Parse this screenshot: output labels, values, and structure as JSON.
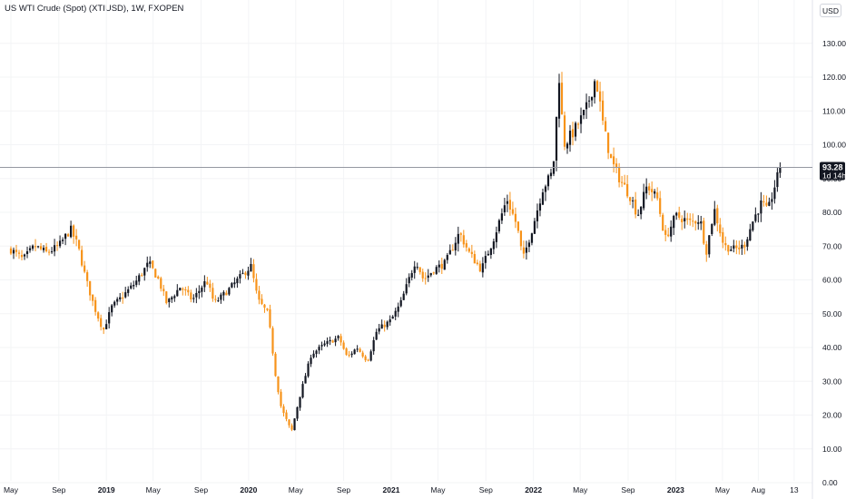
{
  "header": {
    "title": "US WTI Crude (Spot) (XTIUSD), 1W, FXOPEN",
    "currency_button": "USD"
  },
  "colors": {
    "up": "#131722",
    "down": "#f7931a",
    "price_line": "#9598a1",
    "label_bg": "#131722",
    "grid": "#f3f4f6"
  },
  "last_price": {
    "value": 93.28,
    "label": "93.28",
    "countdown": "1d 14h"
  },
  "chart_data": {
    "type": "candlestick",
    "title": "US WTI Crude (Spot) (XTIUSD), 1W, FXOPEN",
    "ylabel": "USD",
    "ylim": [
      0,
      135
    ],
    "yticks": [
      "0.00",
      "10.00",
      "20.00",
      "30.00",
      "40.00",
      "50.00",
      "60.00",
      "70.00",
      "80.00",
      "90.00",
      "100.00",
      "110.00",
      "120.00",
      "130.00"
    ],
    "xlim": [
      "2018-05-01",
      "2023-11-06"
    ],
    "xticks": [
      {
        "date": "2018-05-01",
        "label": "May",
        "year": false
      },
      {
        "date": "2018-09-01",
        "label": "Sep",
        "year": false
      },
      {
        "date": "2019-01-01",
        "label": "2019",
        "year": true
      },
      {
        "date": "2019-05-01",
        "label": "May",
        "year": false
      },
      {
        "date": "2019-09-01",
        "label": "Sep",
        "year": false
      },
      {
        "date": "2020-01-01",
        "label": "2020",
        "year": true
      },
      {
        "date": "2020-05-01",
        "label": "May",
        "year": false
      },
      {
        "date": "2020-09-01",
        "label": "Sep",
        "year": false
      },
      {
        "date": "2021-01-01",
        "label": "2021",
        "year": true
      },
      {
        "date": "2021-05-01",
        "label": "May",
        "year": false
      },
      {
        "date": "2021-09-01",
        "label": "Sep",
        "year": false
      },
      {
        "date": "2022-01-01",
        "label": "2022",
        "year": true
      },
      {
        "date": "2022-05-01",
        "label": "May",
        "year": false
      },
      {
        "date": "2022-09-01",
        "label": "Sep",
        "year": false
      },
      {
        "date": "2023-01-01",
        "label": "2023",
        "year": true
      },
      {
        "date": "2023-05-01",
        "label": "May",
        "year": false
      },
      {
        "date": "2023-08-01",
        "label": "Aug",
        "year": false
      },
      {
        "date": "2023-11-01",
        "label": "13",
        "year": false
      }
    ],
    "trend": [
      [
        "2018-05-01",
        69
      ],
      [
        "2018-06-01",
        66
      ],
      [
        "2018-07-01",
        70
      ],
      [
        "2018-08-01",
        68
      ],
      [
        "2018-09-01",
        70
      ],
      [
        "2018-10-01",
        75
      ],
      [
        "2018-10-20",
        70
      ],
      [
        "2018-11-10",
        60
      ],
      [
        "2018-12-01",
        52
      ],
      [
        "2018-12-24",
        45
      ],
      [
        "2019-01-15",
        52
      ],
      [
        "2019-02-10",
        55
      ],
      [
        "2019-03-15",
        59
      ],
      [
        "2019-04-20",
        65
      ],
      [
        "2019-05-15",
        60
      ],
      [
        "2019-06-05",
        53
      ],
      [
        "2019-07-10",
        58
      ],
      [
        "2019-08-10",
        54
      ],
      [
        "2019-09-15",
        60
      ],
      [
        "2019-10-05",
        53
      ],
      [
        "2019-11-10",
        57
      ],
      [
        "2019-12-20",
        62
      ],
      [
        "2020-01-07",
        64
      ],
      [
        "2020-01-25",
        54
      ],
      [
        "2020-02-20",
        50
      ],
      [
        "2020-03-10",
        32
      ],
      [
        "2020-03-25",
        22
      ],
      [
        "2020-04-20",
        15
      ],
      [
        "2020-05-10",
        25
      ],
      [
        "2020-06-10",
        38
      ],
      [
        "2020-07-15",
        41
      ],
      [
        "2020-08-20",
        43
      ],
      [
        "2020-09-10",
        37
      ],
      [
        "2020-10-05",
        40
      ],
      [
        "2020-11-01",
        36
      ],
      [
        "2020-11-25",
        45
      ],
      [
        "2020-12-31",
        48
      ],
      [
        "2021-01-25",
        53
      ],
      [
        "2021-03-05",
        66
      ],
      [
        "2021-03-25",
        60
      ],
      [
        "2021-04-20",
        63
      ],
      [
        "2021-05-20",
        65
      ],
      [
        "2021-06-25",
        74
      ],
      [
        "2021-07-20",
        68
      ],
      [
        "2021-08-20",
        63
      ],
      [
        "2021-09-20",
        72
      ],
      [
        "2021-10-25",
        84
      ],
      [
        "2021-11-20",
        76
      ],
      [
        "2021-12-05",
        66
      ],
      [
        "2021-12-31",
        76
      ],
      [
        "2022-01-25",
        87
      ],
      [
        "2022-02-20",
        92
      ],
      [
        "2022-03-08",
        120
      ],
      [
        "2022-03-20",
        100
      ],
      [
        "2022-04-15",
        104
      ],
      [
        "2022-05-15",
        110
      ],
      [
        "2022-06-10",
        120
      ],
      [
        "2022-06-30",
        105
      ],
      [
        "2022-07-20",
        95
      ],
      [
        "2022-08-10",
        90
      ],
      [
        "2022-09-10",
        84
      ],
      [
        "2022-09-25",
        79
      ],
      [
        "2022-10-20",
        88
      ],
      [
        "2022-11-15",
        84
      ],
      [
        "2022-12-05",
        72
      ],
      [
        "2023-01-01",
        79
      ],
      [
        "2023-02-10",
        77
      ],
      [
        "2023-03-05",
        78
      ],
      [
        "2023-03-20",
        68
      ],
      [
        "2023-04-10",
        81
      ],
      [
        "2023-05-05",
        70
      ],
      [
        "2023-06-01",
        69
      ],
      [
        "2023-06-25",
        70
      ],
      [
        "2023-07-20",
        78
      ],
      [
        "2023-08-10",
        83
      ],
      [
        "2023-08-25",
        80
      ],
      [
        "2023-09-15",
        89
      ],
      [
        "2023-09-28",
        93.28
      ]
    ]
  }
}
